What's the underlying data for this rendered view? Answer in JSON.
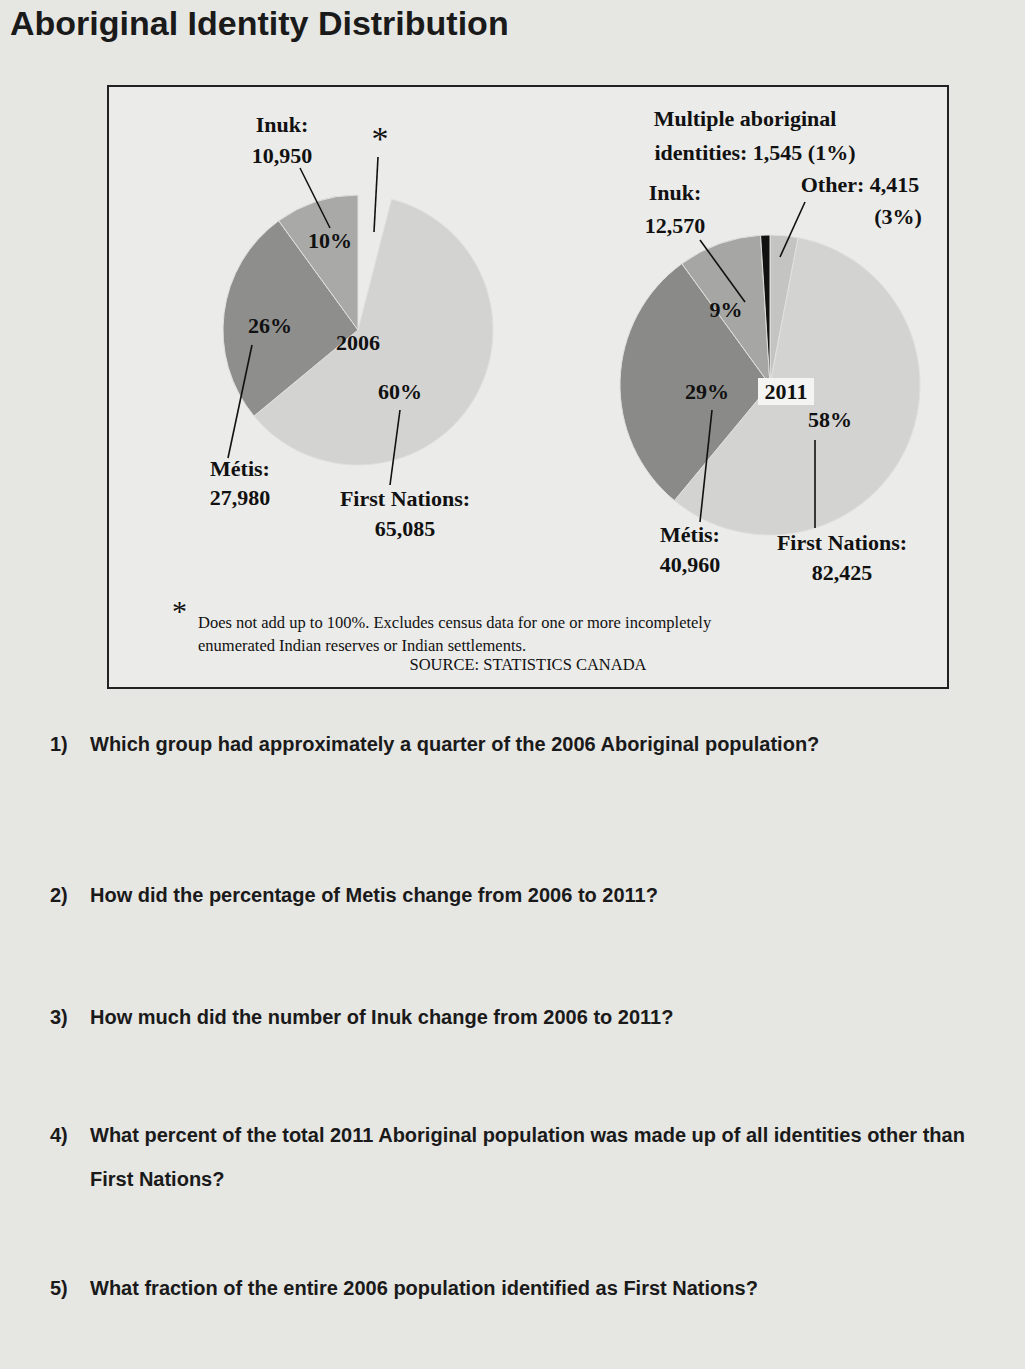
{
  "page_title": "Aboriginal Identity Distribution",
  "chart_data": [
    {
      "type": "pie",
      "title": "2006",
      "annotation": "*",
      "categories": [
        "First Nations:",
        "Métis:",
        "Inuk:"
      ],
      "values": [
        60,
        26,
        10
      ],
      "value_labels": [
        "60%",
        "26%",
        "10%"
      ],
      "counts": [
        65085,
        27980,
        10950
      ],
      "colors": [
        "#d3d3d1",
        "#8e8e8c",
        "#a9a9a7"
      ],
      "data_labels": true
    },
    {
      "type": "pie",
      "title": "2011",
      "categories": [
        "Other:",
        "First Nations:",
        "Métis:",
        "Inuk:",
        "Multiple aboriginal identities:"
      ],
      "values": [
        3,
        58,
        29,
        9,
        1
      ],
      "value_labels": [
        "(3%)",
        "58%",
        "29%",
        "9%",
        "(1%)"
      ],
      "counts": [
        4415,
        82425,
        40960,
        12570,
        1545
      ],
      "colors": [
        "#c4c4c2",
        "#d3d3d1",
        "#8a8a88",
        "#a6a6a4",
        "#111111"
      ],
      "data_labels": true
    }
  ],
  "footnote": {
    "marker": "*",
    "text": "Does not add up to 100%. Excludes census data for one or more incompletely enumerated Indian reserves or Indian settlements."
  },
  "source": "SOURCE: STATISTICS CANADA",
  "questions": [
    {
      "number": "1)",
      "text": "Which group had approximately a quarter of the 2006 Aboriginal population?"
    },
    {
      "number": "2)",
      "text": "How did the percentage of Metis change from 2006 to 2011?"
    },
    {
      "number": "3)",
      "text": "How much did the number of Inuk change from 2006 to 2011?"
    },
    {
      "number": "4)",
      "text": "What percent of the total 2011 Aboriginal population was made up of all identities other than First Nations?"
    },
    {
      "number": "5)",
      "text": "What fraction of the entire 2006 population identified as First Nations?"
    }
  ]
}
